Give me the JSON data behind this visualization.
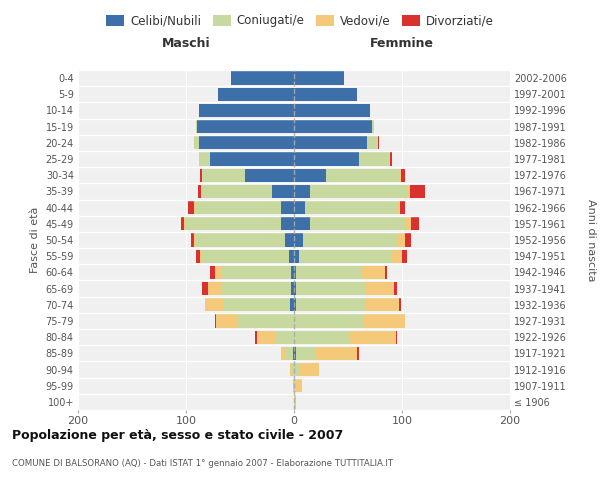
{
  "age_groups": [
    "100+",
    "95-99",
    "90-94",
    "85-89",
    "80-84",
    "75-79",
    "70-74",
    "65-69",
    "60-64",
    "55-59",
    "50-54",
    "45-49",
    "40-44",
    "35-39",
    "30-34",
    "25-29",
    "20-24",
    "15-19",
    "10-14",
    "5-9",
    "0-4"
  ],
  "birth_years": [
    "≤ 1906",
    "1907-1911",
    "1912-1916",
    "1917-1921",
    "1922-1926",
    "1927-1931",
    "1932-1936",
    "1937-1941",
    "1942-1946",
    "1947-1951",
    "1952-1956",
    "1957-1961",
    "1962-1966",
    "1967-1971",
    "1972-1976",
    "1977-1981",
    "1982-1986",
    "1987-1991",
    "1992-1996",
    "1997-2001",
    "2002-2006"
  ],
  "colors": {
    "celibi": "#3d6fa8",
    "coniugati": "#c8d9a0",
    "vedovi": "#f5c97a",
    "divorziati": "#d93030",
    "background": "#f0f0f0"
  },
  "maschi": {
    "celibi": [
      0,
      0,
      0,
      1,
      0,
      0,
      4,
      3,
      3,
      5,
      8,
      12,
      12,
      20,
      45,
      78,
      88,
      90,
      88,
      70,
      58
    ],
    "coniugati": [
      0,
      1,
      2,
      6,
      18,
      52,
      62,
      65,
      65,
      80,
      83,
      88,
      80,
      65,
      40,
      10,
      5,
      1,
      0,
      0,
      0
    ],
    "vedovi": [
      0,
      0,
      2,
      5,
      16,
      20,
      16,
      12,
      5,
      2,
      2,
      2,
      1,
      1,
      0,
      0,
      0,
      0,
      0,
      0,
      0
    ],
    "divorziati": [
      0,
      0,
      0,
      0,
      2,
      1,
      0,
      5,
      5,
      4,
      2,
      3,
      5,
      3,
      2,
      0,
      0,
      0,
      0,
      0,
      0
    ]
  },
  "femmine": {
    "celibi": [
      0,
      0,
      0,
      2,
      0,
      0,
      2,
      2,
      2,
      5,
      8,
      15,
      10,
      15,
      30,
      60,
      68,
      72,
      70,
      58,
      46
    ],
    "coniugati": [
      0,
      2,
      5,
      18,
      52,
      65,
      65,
      65,
      60,
      85,
      88,
      88,
      86,
      90,
      68,
      28,
      10,
      2,
      0,
      0,
      0
    ],
    "vedovi": [
      2,
      5,
      18,
      38,
      42,
      38,
      30,
      26,
      22,
      10,
      7,
      5,
      2,
      2,
      1,
      1,
      0,
      0,
      0,
      0,
      0
    ],
    "divorziati": [
      0,
      0,
      0,
      2,
      1,
      0,
      2,
      2,
      2,
      5,
      5,
      8,
      5,
      14,
      4,
      2,
      1,
      0,
      0,
      0,
      0
    ]
  },
  "xlim": 200,
  "title": "Popolazione per età, sesso e stato civile - 2007",
  "subtitle": "COMUNE DI BALSORANO (AQ) - Dati ISTAT 1° gennaio 2007 - Elaborazione TUTTITALIA.IT",
  "ylabel": "Fasce di età",
  "ylabel_right": "Anni di nascita",
  "label_maschi": "Maschi",
  "label_femmine": "Femmine"
}
